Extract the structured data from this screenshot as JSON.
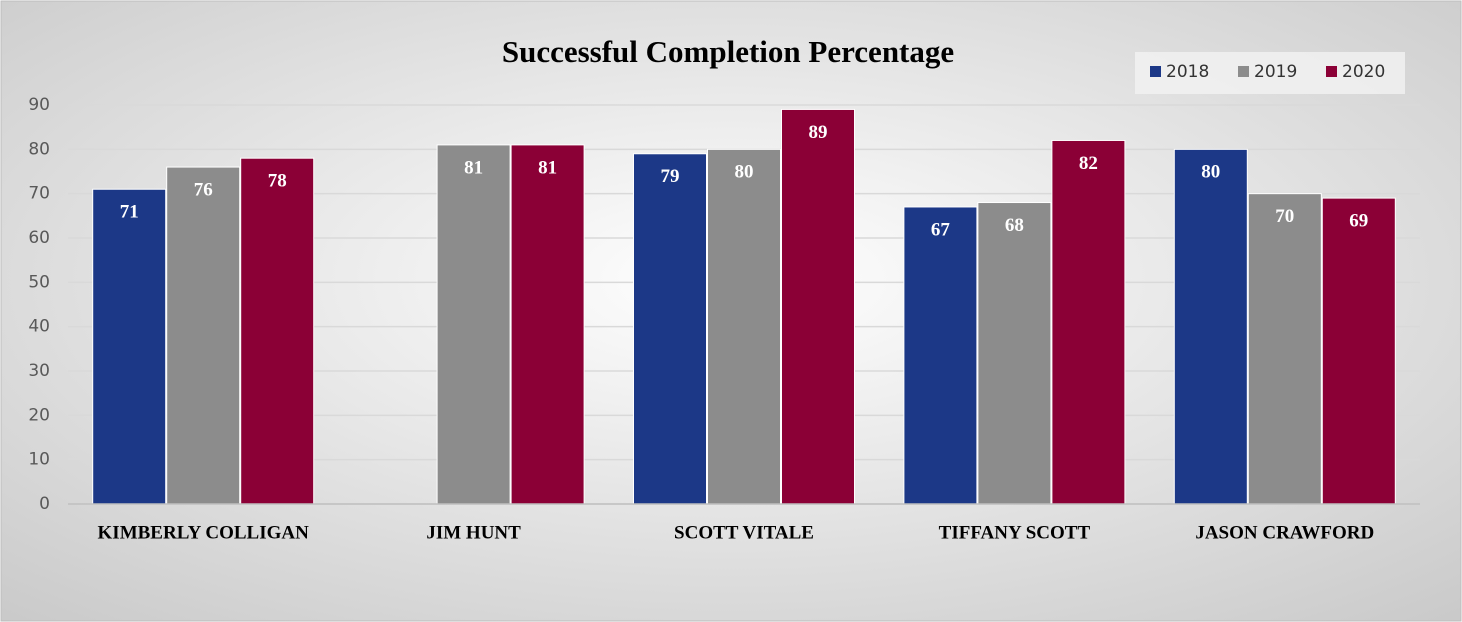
{
  "chart_data": {
    "type": "bar",
    "title": "Successful Completion Percentage",
    "categories": [
      "KIMBERLY COLLIGAN",
      "JIM HUNT",
      "SCOTT VITALE",
      "TIFFANY SCOTT",
      "JASON CRAWFORD"
    ],
    "series": [
      {
        "name": "2018",
        "color": "#1c3887",
        "values": [
          71,
          null,
          79,
          67,
          80
        ]
      },
      {
        "name": "2019",
        "color": "#8c8c8c",
        "values": [
          76,
          81,
          80,
          68,
          70
        ]
      },
      {
        "name": "2020",
        "color": "#8b0036",
        "values": [
          78,
          81,
          89,
          82,
          69
        ]
      }
    ],
    "ylim": [
      0,
      90
    ],
    "yticks": [
      0,
      10,
      20,
      30,
      40,
      50,
      60,
      70,
      80,
      90
    ],
    "grid": true,
    "legend": "top-right"
  }
}
